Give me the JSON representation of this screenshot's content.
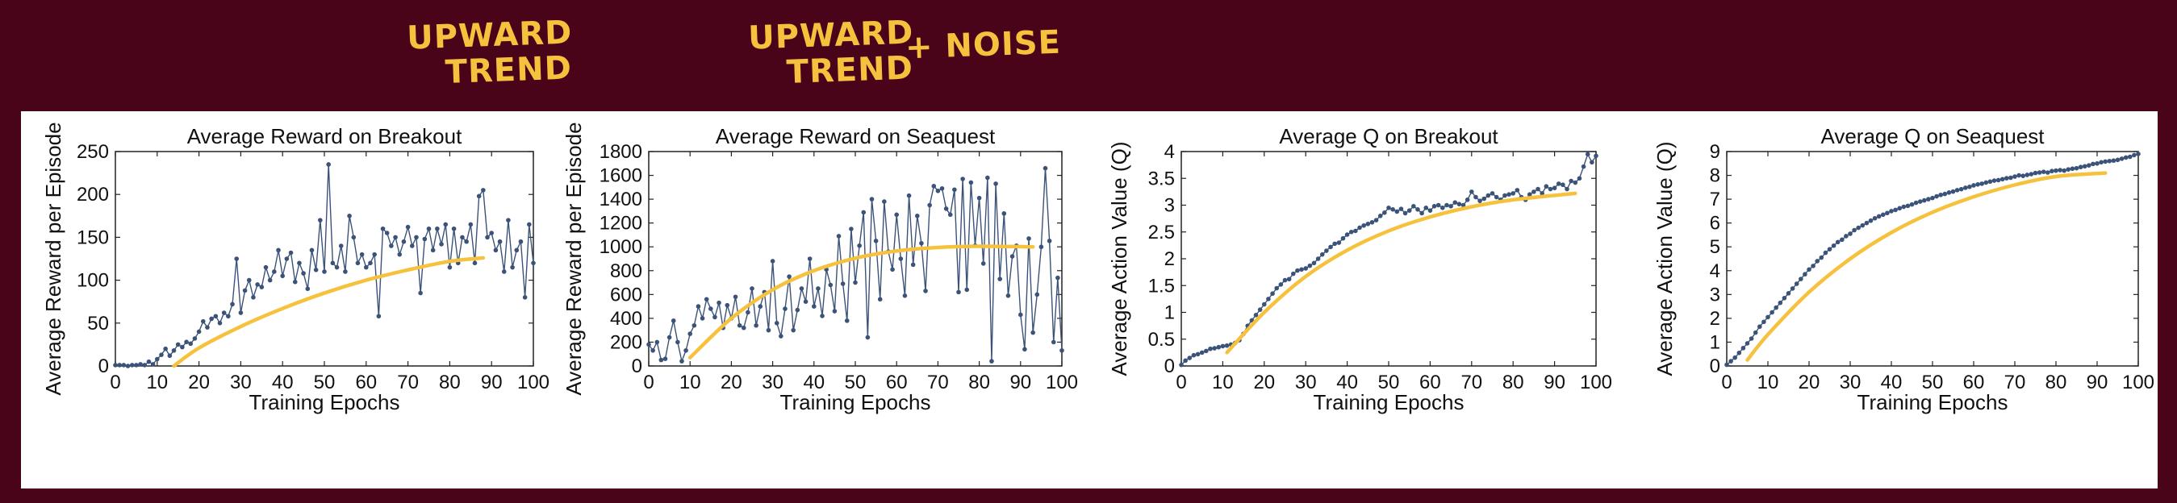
{
  "annotations": [
    {
      "line1": "UPWARD",
      "line2": "TREND"
    },
    {
      "line1": "UPWARD",
      "line2": "TREND",
      "suffix": "+ NOISE"
    }
  ],
  "colors": {
    "background": "#4a0419",
    "panel": "#ffffff",
    "series": "#3b5378",
    "trend": "#f6c23d",
    "annotation": "#f6c23d"
  },
  "chart_data": [
    {
      "type": "line",
      "title": "Average Reward on Breakout",
      "xlabel": "Training Epochs",
      "ylabel": "Average Reward per Episode",
      "xlim": [
        0,
        100
      ],
      "ylim": [
        0,
        250
      ],
      "xticks": [
        0,
        10,
        20,
        30,
        40,
        50,
        60,
        70,
        80,
        90,
        100
      ],
      "yticks": [
        0,
        50,
        100,
        150,
        200,
        250
      ],
      "grid": false,
      "series": [
        {
          "values": [
            1,
            1,
            1,
            0,
            1,
            1,
            2,
            1,
            5,
            2,
            8,
            13,
            20,
            12,
            18,
            25,
            22,
            28,
            26,
            32,
            40,
            52,
            45,
            55,
            58,
            50,
            62,
            58,
            72,
            125,
            62,
            88,
            100,
            80,
            95,
            92,
            115,
            100,
            110,
            135,
            105,
            125,
            132,
            98,
            120,
            108,
            90,
            135,
            112,
            170,
            110,
            235,
            120,
            115,
            140,
            110,
            175,
            150,
            120,
            130,
            115,
            120,
            130,
            58,
            160,
            155,
            140,
            150,
            130,
            145,
            162,
            140,
            150,
            85,
            148,
            160,
            135,
            160,
            142,
            165,
            115,
            160,
            120,
            150,
            145,
            165,
            120,
            198,
            205,
            150,
            155,
            135,
            145,
            110,
            170,
            115,
            135,
            145,
            80,
            165,
            120
          ]
        },
        {
          "name": "",
          "values": [
            [
              14,
              0
            ],
            [
              20,
              21
            ],
            [
              30,
              46
            ],
            [
              40,
              67
            ],
            [
              50,
              85
            ],
            [
              60,
              100
            ],
            [
              70,
              112
            ],
            [
              80,
              122
            ],
            [
              88,
              126
            ]
          ]
        }
      ]
    },
    {
      "type": "line",
      "title": "Average Reward on Seaquest",
      "xlabel": "Training Epochs",
      "ylabel": "Average Reward per Episode",
      "xlim": [
        0,
        100
      ],
      "ylim": [
        0,
        1800
      ],
      "xticks": [
        0,
        10,
        20,
        30,
        40,
        50,
        60,
        70,
        80,
        90,
        100
      ],
      "yticks": [
        0,
        200,
        400,
        600,
        800,
        1000,
        1200,
        1400,
        1600,
        1800
      ],
      "grid": false,
      "series": [
        {
          "values": [
            180,
            130,
            200,
            50,
            60,
            240,
            380,
            200,
            40,
            130,
            270,
            340,
            500,
            400,
            560,
            480,
            410,
            530,
            320,
            510,
            400,
            580,
            340,
            320,
            450,
            650,
            340,
            500,
            620,
            300,
            880,
            360,
            250,
            480,
            750,
            300,
            470,
            650,
            540,
            900,
            500,
            650,
            420,
            810,
            680,
            460,
            1090,
            690,
            380,
            1150,
            700,
            1010,
            1290,
            240,
            1400,
            1050,
            560,
            1380,
            960,
            810,
            1270,
            900,
            590,
            1430,
            850,
            1260,
            1030,
            630,
            1350,
            1510,
            1470,
            1490,
            1320,
            1270,
            1480,
            620,
            1570,
            640,
            1540,
            1010,
            1410,
            860,
            1580,
            40,
            1530,
            730,
            1280,
            590,
            920,
            1010,
            430,
            140,
            1070,
            280,
            600,
            1000,
            1660,
            1050,
            200,
            740,
            130
          ]
        },
        {
          "name": "",
          "values": [
            [
              10,
              70
            ],
            [
              20,
              400
            ],
            [
              30,
              640
            ],
            [
              40,
              800
            ],
            [
              50,
              905
            ],
            [
              60,
              965
            ],
            [
              70,
              995
            ],
            [
              80,
              1005
            ],
            [
              93,
              1000
            ]
          ]
        }
      ]
    },
    {
      "type": "line",
      "title": "Average Q on Breakout",
      "xlabel": "Training Epochs",
      "ylabel": "Average Action Value (Q)",
      "xlim": [
        0,
        100
      ],
      "ylim": [
        0,
        4
      ],
      "xticks": [
        0,
        10,
        20,
        30,
        40,
        50,
        60,
        70,
        80,
        90,
        100
      ],
      "yticks": [
        0,
        0.5,
        1,
        1.5,
        2,
        2.5,
        3,
        3.5,
        4
      ],
      "grid": false,
      "series": [
        {
          "values": [
            0.02,
            0.1,
            0.15,
            0.2,
            0.22,
            0.25,
            0.28,
            0.32,
            0.33,
            0.35,
            0.37,
            0.38,
            0.4,
            0.43,
            0.48,
            0.6,
            0.75,
            0.85,
            0.95,
            1.05,
            1.15,
            1.25,
            1.35,
            1.45,
            1.52,
            1.6,
            1.62,
            1.72,
            1.78,
            1.8,
            1.82,
            1.87,
            1.92,
            2.0,
            2.08,
            2.15,
            2.22,
            2.28,
            2.3,
            2.38,
            2.45,
            2.5,
            2.52,
            2.58,
            2.62,
            2.65,
            2.68,
            2.72,
            2.8,
            2.86,
            2.95,
            2.92,
            2.88,
            2.93,
            2.85,
            2.9,
            2.98,
            2.92,
            2.85,
            2.95,
            2.9,
            2.98,
            3.0,
            2.95,
            3.0,
            2.98,
            3.05,
            3.02,
            3.0,
            3.1,
            3.25,
            3.15,
            3.08,
            3.12,
            3.18,
            3.22,
            3.15,
            3.1,
            3.18,
            3.2,
            3.22,
            3.28,
            3.15,
            3.1,
            3.2,
            3.25,
            3.3,
            3.22,
            3.35,
            3.3,
            3.32,
            3.4,
            3.38,
            3.3,
            3.45,
            3.42,
            3.5,
            3.72,
            3.95,
            3.8,
            3.92
          ]
        },
        {
          "name": "",
          "values": [
            [
              11,
              0.25
            ],
            [
              20,
              1.0
            ],
            [
              30,
              1.67
            ],
            [
              40,
              2.16
            ],
            [
              50,
              2.52
            ],
            [
              60,
              2.78
            ],
            [
              70,
              2.97
            ],
            [
              80,
              3.1
            ],
            [
              95,
              3.22
            ]
          ]
        }
      ]
    },
    {
      "type": "line",
      "title": "Average Q on Seaquest",
      "xlabel": "Training Epochs",
      "ylabel": "Average Action Value (Q)",
      "xlim": [
        0,
        100
      ],
      "ylim": [
        0,
        9
      ],
      "xticks": [
        0,
        10,
        20,
        30,
        40,
        50,
        60,
        70,
        80,
        90,
        100
      ],
      "yticks": [
        0,
        1,
        2,
        3,
        4,
        5,
        6,
        7,
        8,
        9
      ],
      "grid": false,
      "series": [
        {
          "values": [
            0.05,
            0.2,
            0.35,
            0.55,
            0.75,
            0.95,
            1.15,
            1.4,
            1.65,
            1.85,
            2.05,
            2.25,
            2.45,
            2.65,
            2.85,
            3.05,
            3.25,
            3.45,
            3.65,
            3.85,
            4.05,
            4.2,
            4.4,
            4.55,
            4.75,
            4.9,
            5.05,
            5.2,
            5.3,
            5.45,
            5.55,
            5.7,
            5.8,
            5.9,
            6.0,
            6.1,
            6.2,
            6.28,
            6.35,
            6.42,
            6.5,
            6.55,
            6.62,
            6.68,
            6.72,
            6.78,
            6.85,
            6.9,
            6.95,
            7.0,
            7.05,
            7.12,
            7.18,
            7.22,
            7.28,
            7.32,
            7.38,
            7.42,
            7.48,
            7.52,
            7.58,
            7.62,
            7.65,
            7.7,
            7.74,
            7.78,
            7.8,
            7.84,
            7.88,
            7.9,
            7.95,
            8.0,
            7.98,
            8.02,
            8.05,
            8.1,
            8.12,
            8.15,
            8.12,
            8.18,
            8.2,
            8.22,
            8.2,
            8.25,
            8.28,
            8.3,
            8.35,
            8.38,
            8.42,
            8.48,
            8.5,
            8.55,
            8.58,
            8.6,
            8.62,
            8.65,
            8.7,
            8.75,
            8.78,
            8.85,
            8.9
          ]
        },
        {
          "name": "",
          "values": [
            [
              5,
              0.25
            ],
            [
              10,
              1.32
            ],
            [
              20,
              3.1
            ],
            [
              30,
              4.5
            ],
            [
              40,
              5.6
            ],
            [
              50,
              6.45
            ],
            [
              60,
              7.1
            ],
            [
              70,
              7.6
            ],
            [
              80,
              7.95
            ],
            [
              92,
              8.1
            ]
          ]
        }
      ]
    }
  ]
}
